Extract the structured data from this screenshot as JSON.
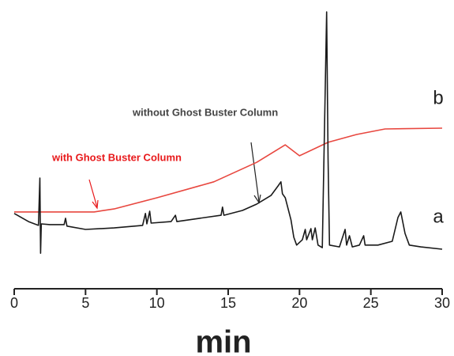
{
  "chart_data": {
    "type": "line",
    "x_label": "min",
    "xlim": [
      0,
      30
    ],
    "xticks": [
      0,
      5,
      10,
      15,
      20,
      25,
      30
    ],
    "ylim": [
      0,
      100
    ],
    "series": [
      {
        "name": "b",
        "color": "#e8473f",
        "x": [
          0,
          5.6,
          7,
          10,
          14,
          17,
          19,
          20,
          22,
          24,
          26,
          30
        ],
        "values": [
          19.4,
          19.4,
          20.6,
          25,
          31.3,
          39,
          45.9,
          41.6,
          46.9,
          50,
          52.2,
          52.5
        ]
      },
      {
        "name": "a",
        "color": "#1a1a1a",
        "x": [
          0,
          1,
          1.7,
          1.8,
          1.85,
          1.9,
          2.5,
          3.5,
          3.6,
          3.7,
          5,
          7,
          9,
          9.2,
          9.3,
          9.5,
          9.6,
          11,
          11.3,
          11.4,
          13,
          14.5,
          14.6,
          14.7,
          16,
          17,
          18,
          18.5,
          18.7,
          18.8,
          19,
          19.4,
          19.6,
          19.8,
          20.2,
          20.4,
          20.5,
          20.8,
          20.9,
          21.1,
          21.3,
          21.6,
          21.9,
          22.0,
          22.1,
          22.8,
          23.2,
          23.3,
          23.5,
          23.7,
          24.2,
          24.5,
          24.6,
          25.5,
          26.5,
          26.9,
          27.1,
          27.4,
          27.7,
          28.5,
          30
        ],
        "values": [
          18.8,
          15.6,
          14.1,
          32.8,
          3.1,
          14.7,
          14.4,
          14.4,
          16.9,
          13.8,
          12.5,
          13.1,
          14.1,
          18.8,
          14.7,
          19.7,
          15,
          15.6,
          18.1,
          15.6,
          16.9,
          18.1,
          21.3,
          18.1,
          20,
          22.5,
          25.9,
          29.7,
          31.3,
          26.6,
          25,
          16.3,
          9.4,
          6.3,
          8.4,
          12.5,
          8.4,
          12.8,
          8.4,
          13.1,
          6.3,
          5.3,
          98.4,
          40.6,
          6.3,
          5.6,
          12.5,
          6.3,
          10,
          5.6,
          6.3,
          10,
          6.3,
          6.3,
          7.8,
          17.2,
          19.4,
          10.9,
          6.3,
          5.6,
          4.7
        ]
      }
    ],
    "annotations": [
      {
        "text": "without Ghost Buster Column",
        "color": "#444444"
      },
      {
        "text": "with Ghost Buster Column",
        "color": "#e8191b"
      }
    ]
  }
}
